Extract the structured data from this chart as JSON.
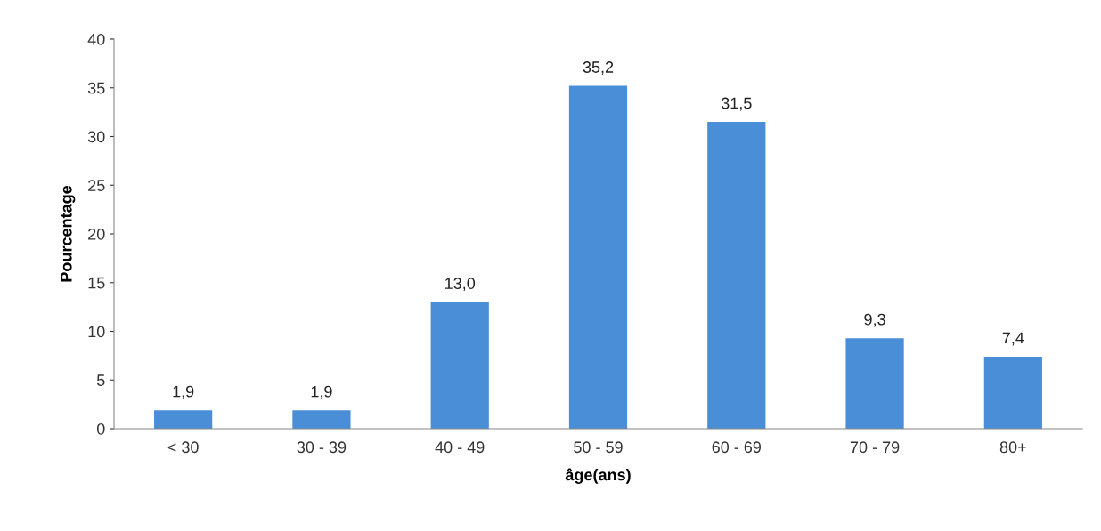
{
  "chart_data": {
    "type": "bar",
    "xlabel": "âge(ans)",
    "ylabel": "Pourcentage",
    "categories": [
      "< 30",
      "30 - 39",
      "40 - 49",
      "50 - 59",
      "60 - 69",
      "70 - 79",
      "80+"
    ],
    "values": [
      1.9,
      1.9,
      13.0,
      35.2,
      31.5,
      9.3,
      7.4
    ],
    "value_labels": [
      "1,9",
      "1,9",
      "13,0",
      "35,2",
      "31,5",
      "9,3",
      "7,4"
    ],
    "color": "#4a8ed8",
    "ylim": [
      0,
      40
    ],
    "yticks": [
      0,
      5,
      10,
      15,
      20,
      25,
      30,
      35,
      40
    ],
    "grid": false
  }
}
